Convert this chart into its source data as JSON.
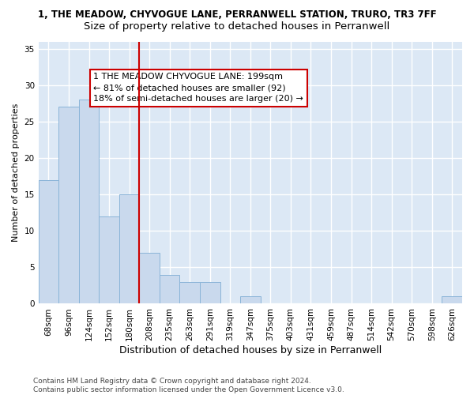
{
  "title": "1, THE MEADOW, CHYVOGUE LANE, PERRANWELL STATION, TRURO, TR3 7FF",
  "subtitle": "Size of property relative to detached houses in Perranwell",
  "xlabel": "Distribution of detached houses by size in Perranwell",
  "ylabel": "Number of detached properties",
  "categories": [
    "68sqm",
    "96sqm",
    "124sqm",
    "152sqm",
    "180sqm",
    "208sqm",
    "235sqm",
    "263sqm",
    "291sqm",
    "319sqm",
    "347sqm",
    "375sqm",
    "403sqm",
    "431sqm",
    "459sqm",
    "487sqm",
    "514sqm",
    "542sqm",
    "570sqm",
    "598sqm",
    "626sqm"
  ],
  "values": [
    17,
    27,
    28,
    12,
    15,
    7,
    4,
    3,
    3,
    0,
    1,
    0,
    0,
    0,
    0,
    0,
    0,
    0,
    0,
    0,
    1
  ],
  "bar_color": "#c9d9ed",
  "bar_edge_color": "#8ab4d8",
  "ref_line_x": 5.0,
  "ref_line_color": "#cc0000",
  "annotation_text": "1 THE MEADOW CHYVOGUE LANE: 199sqm\n← 81% of detached houses are smaller (92)\n18% of semi-detached houses are larger (20) →",
  "annotation_box_color": "#ffffff",
  "annotation_box_edge": "#cc0000",
  "ylim": [
    0,
    36
  ],
  "yticks": [
    0,
    5,
    10,
    15,
    20,
    25,
    30,
    35
  ],
  "background_color": "#dce8f5",
  "grid_color": "#ffffff",
  "footer": "Contains HM Land Registry data © Crown copyright and database right 2024.\nContains public sector information licensed under the Open Government Licence v3.0.",
  "title_fontsize": 8.5,
  "subtitle_fontsize": 9.5,
  "xlabel_fontsize": 9,
  "ylabel_fontsize": 8,
  "tick_fontsize": 7.5,
  "annotation_fontsize": 8,
  "footer_fontsize": 6.5
}
